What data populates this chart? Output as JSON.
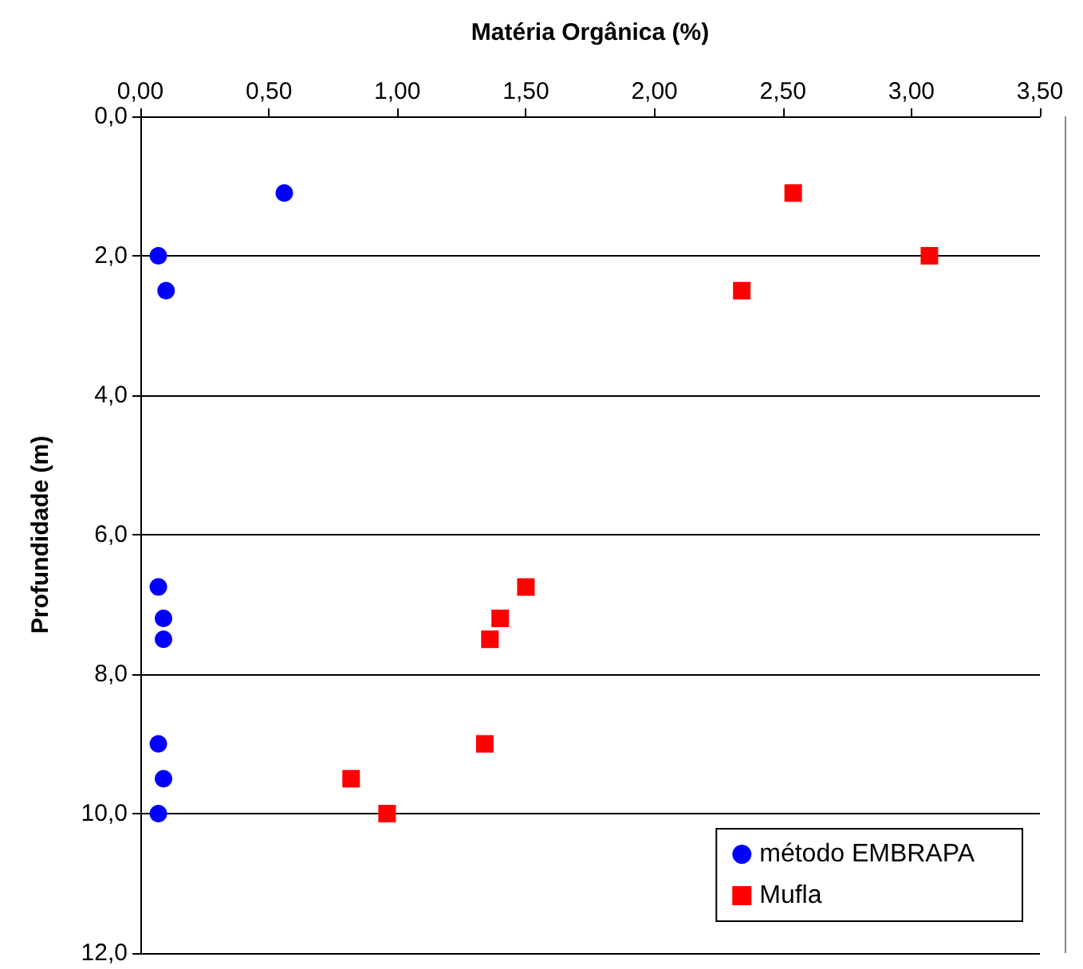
{
  "chart_data": {
    "type": "scatter",
    "xlabel": "Matéria Orgânica (%)",
    "ylabel": "Profundidade (m)",
    "xlim": [
      0,
      3.5
    ],
    "xticks": [
      {
        "value": 0,
        "label": "0,00"
      },
      {
        "value": 0.5,
        "label": "0,50"
      },
      {
        "value": 1,
        "label": "1,00"
      },
      {
        "value": 1.5,
        "label": "1,50"
      },
      {
        "value": 2,
        "label": "2,00"
      },
      {
        "value": 2.5,
        "label": "2,50"
      },
      {
        "value": 3,
        "label": "3,00"
      },
      {
        "value": 3.5,
        "label": "3,50"
      }
    ],
    "ylim": [
      12,
      0
    ],
    "yticks": [
      {
        "value": 0,
        "label": "0,0"
      },
      {
        "value": 2,
        "label": "2,0"
      },
      {
        "value": 4,
        "label": "4,0"
      },
      {
        "value": 6,
        "label": "6,0"
      },
      {
        "value": 8,
        "label": "8,0"
      },
      {
        "value": 10,
        "label": "10,0"
      },
      {
        "value": 12,
        "label": "12,0"
      }
    ],
    "grid": "y",
    "legend": "bottom right",
    "series": [
      {
        "name": "método EMBRAPA",
        "color": "#0000ff",
        "marker": "circle",
        "x": [
          0.56,
          0.07,
          0.1,
          0.07,
          0.09,
          0.09,
          0.07,
          0.09,
          0.07
        ],
        "values": [
          1.1,
          2.0,
          2.5,
          6.75,
          7.2,
          7.5,
          9.0,
          9.5,
          10.0
        ]
      },
      {
        "name": "Mufla",
        "color": "#ff0000",
        "marker": "square",
        "x": [
          2.54,
          3.07,
          2.34,
          1.5,
          1.4,
          1.36,
          1.34,
          0.82,
          0.96
        ],
        "values": [
          1.1,
          2.0,
          2.5,
          6.75,
          7.2,
          7.5,
          9.0,
          9.5,
          10.0
        ]
      }
    ]
  }
}
